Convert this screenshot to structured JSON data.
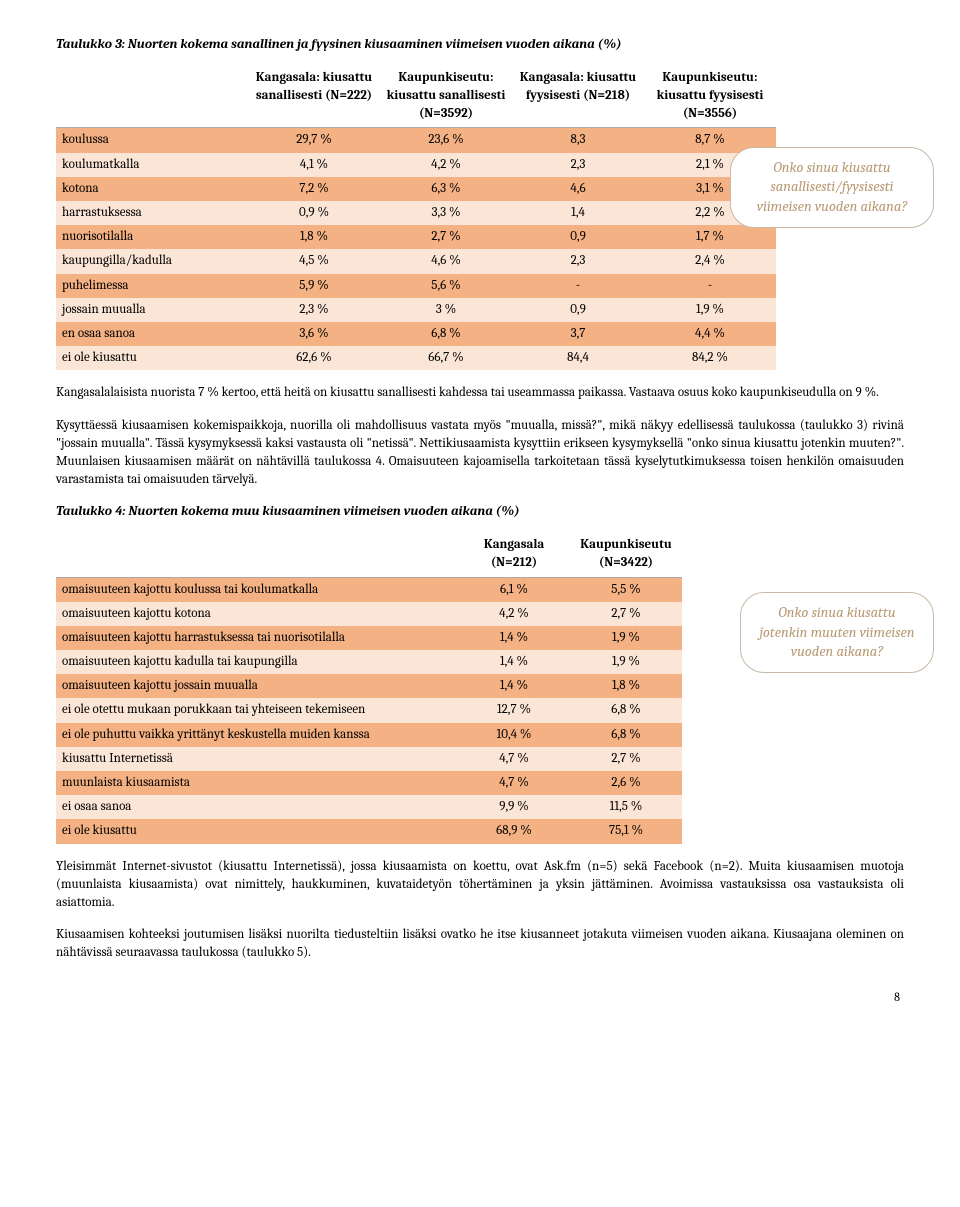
{
  "colors": {
    "band_orange": "#f4b183",
    "band_cream": "#fbe5d6",
    "bubble_border": "#c7b9a5",
    "bubble_text": "#b89a73",
    "text": "#000000",
    "background": "#ffffff"
  },
  "table3": {
    "title": "Taulukko 3: Nuorten kokema sanallinen ja fyysinen kiusaaminen viimeisen vuoden aikana (%)",
    "headers": [
      "Kangasala: kiusattu sanallisesti (N=222)",
      "Kaupunkiseutu: kiusattu sanallisesti (N=3592)",
      "Kangasala: kiusattu fyysisesti (N=218)",
      "Kaupunkiseutu: kiusattu fyysisesti (N=3556)"
    ],
    "rows": [
      {
        "label": "koulussa",
        "v": [
          "29,7 %",
          "23,6 %",
          "8,3",
          "8,7 %"
        ]
      },
      {
        "label": "koulumatkalla",
        "v": [
          "4,1 %",
          "4,2 %",
          "2,3",
          "2,1 %"
        ]
      },
      {
        "label": "kotona",
        "v": [
          "7,2 %",
          "6,3 %",
          "4,6",
          "3,1 %"
        ]
      },
      {
        "label": "harrastuksessa",
        "v": [
          "0,9 %",
          "3,3 %",
          "1,4",
          "2,2 %"
        ]
      },
      {
        "label": "nuorisotilalla",
        "v": [
          "1,8 %",
          "2,7 %",
          "0,9",
          "1,7 %"
        ]
      },
      {
        "label": "kaupungilla/kadulla",
        "v": [
          "4,5 %",
          "4,6 %",
          "2,3",
          "2,4 %"
        ]
      },
      {
        "label": "puhelimessa",
        "v": [
          "5,9 %",
          "5,6 %",
          "-",
          "-"
        ]
      },
      {
        "label": "jossain muualla",
        "v": [
          "2,3 %",
          "3 %",
          "0,9",
          "1,9 %"
        ]
      },
      {
        "label": "en osaa sanoa",
        "v": [
          "3,6 %",
          "6,8 %",
          "3,7",
          "4,4 %"
        ]
      },
      {
        "label": "ei ole kiusattu",
        "v": [
          "62,6 %",
          "66,7 %",
          "84,4",
          "84,2 %"
        ]
      }
    ]
  },
  "bubble1": "Onko sinua kiusattu sanallisesti/fyysisesti viimeisen vuoden aikana?",
  "para1": "Kangasalalaisista nuorista 7 % kertoo, että heitä on kiusattu sanallisesti kahdessa tai useammassa paikassa. Vastaava osuus koko kaupunkiseudulla on 9 %.",
  "para2": "Kysyttäessä kiusaamisen kokemispaikkoja, nuorilla oli mahdollisuus vastata myös \"muualla, missä?\", mikä näkyy edellisessä taulukossa (taulukko 3) rivinä \"jossain muualla\". Tässä kysymyksessä kaksi vastausta oli \"netissä\". Nettikiusaamista kysyttiin erikseen kysymyksellä \"onko sinua kiusattu jotenkin muuten?\".  Muunlaisen kiusaamisen määrät on nähtävillä taulukossa 4. Omaisuuteen kajoamisella tarkoitetaan tässä kyselytutkimuksessa toisen henkilön omaisuuden varastamista tai omaisuuden tärvelyä.",
  "table4": {
    "title": "Taulukko 4: Nuorten kokema muu kiusaaminen viimeisen vuoden aikana (%)",
    "headers": [
      "Kangasala (N=212)",
      "Kaupunkiseutu (N=3422)"
    ],
    "rows": [
      {
        "label": "omaisuuteen kajottu koulussa tai koulumatkalla",
        "v": [
          "6,1 %",
          "5,5 %"
        ]
      },
      {
        "label": "omaisuuteen kajottu kotona",
        "v": [
          "4,2 %",
          "2,7 %"
        ]
      },
      {
        "label": "omaisuuteen kajottu harrastuksessa tai nuorisotilalla",
        "v": [
          "1,4 %",
          "1,9 %"
        ]
      },
      {
        "label": "omaisuuteen kajottu kadulla tai kaupungilla",
        "v": [
          "1,4 %",
          "1,9 %"
        ]
      },
      {
        "label": "omaisuuteen kajottu jossain muualla",
        "v": [
          "1,4 %",
          "1,8 %"
        ]
      },
      {
        "label": "ei ole otettu mukaan porukkaan tai yhteiseen tekemiseen",
        "v": [
          "12,7 %",
          "6,8 %"
        ]
      },
      {
        "label": "ei ole puhuttu vaikka yrittänyt keskustella muiden kanssa",
        "v": [
          "10,4 %",
          "6,8 %"
        ]
      },
      {
        "label": "kiusattu Internetissä",
        "v": [
          "4,7 %",
          "2,7 %"
        ]
      },
      {
        "label": "muunlaista kiusaamista",
        "v": [
          "4,7 %",
          "2,6 %"
        ]
      },
      {
        "label": "ei osaa sanoa",
        "v": [
          "9,9 %",
          "11,5 %"
        ]
      },
      {
        "label": "ei ole kiusattu",
        "v": [
          "68,9 %",
          "75,1 %"
        ]
      }
    ]
  },
  "bubble2": "Onko sinua kiusattu jotenkin muuten viimeisen vuoden aikana?",
  "para3": "Yleisimmät Internet-sivustot (kiusattu Internetissä), jossa kiusaamista on koettu, ovat Ask.fm (n=5) sekä Facebook (n=2). Muita kiusaamisen muotoja (muunlaista kiusaamista) ovat nimittely, haukkuminen, kuvataidetyön töhertäminen ja yksin jättäminen. Avoimissa vastauksissa osa vastauksista oli asiattomia.",
  "para4": "Kiusaamisen kohteeksi joutumisen lisäksi nuorilta tiedusteltiin lisäksi ovatko he itse kiusanneet jotakuta viimeisen vuoden aikana. Kiusaajana oleminen on nähtävissä seuraavassa taulukossa (taulukko 5).",
  "page_number": "8"
}
